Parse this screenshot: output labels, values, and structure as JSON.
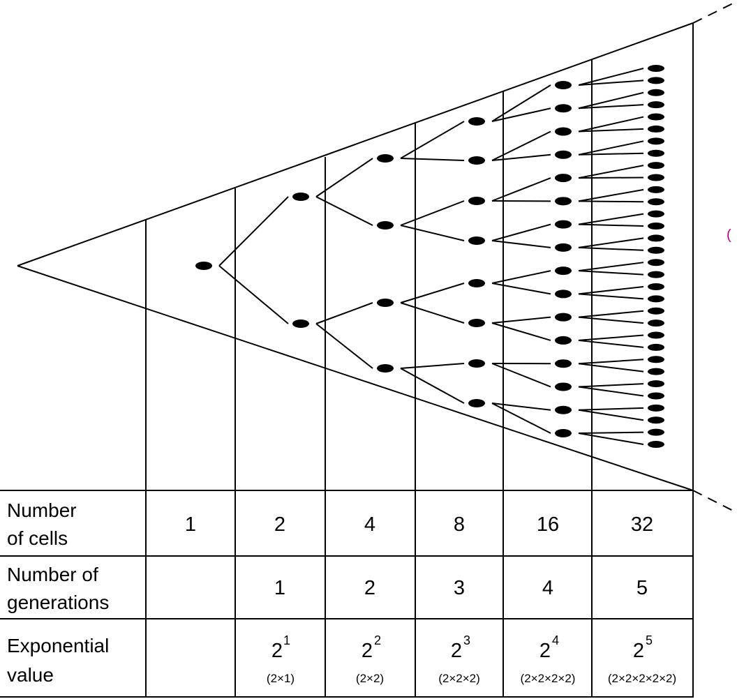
{
  "diagram": {
    "generations_drawn": 5,
    "edge_mark": "("
  },
  "table": {
    "rows": [
      {
        "label_lines": [
          "Number",
          "of cells"
        ],
        "values": [
          "1",
          "2",
          "4",
          "8",
          "16",
          "32"
        ]
      },
      {
        "label_lines": [
          "Number of",
          "generations"
        ],
        "values": [
          "",
          "1",
          "2",
          "3",
          "4",
          "5"
        ]
      },
      {
        "label_lines": [
          "Exponential",
          "value"
        ],
        "base": [
          "",
          "2",
          "2",
          "2",
          "2",
          "2"
        ],
        "exponent": [
          "",
          "1",
          "2",
          "3",
          "4",
          "5"
        ],
        "expansion": [
          "",
          "(2×1)",
          "(2×2)",
          "(2×2×2)",
          "(2×2×2×2)",
          "(2×2×2×2×2)"
        ]
      }
    ]
  }
}
